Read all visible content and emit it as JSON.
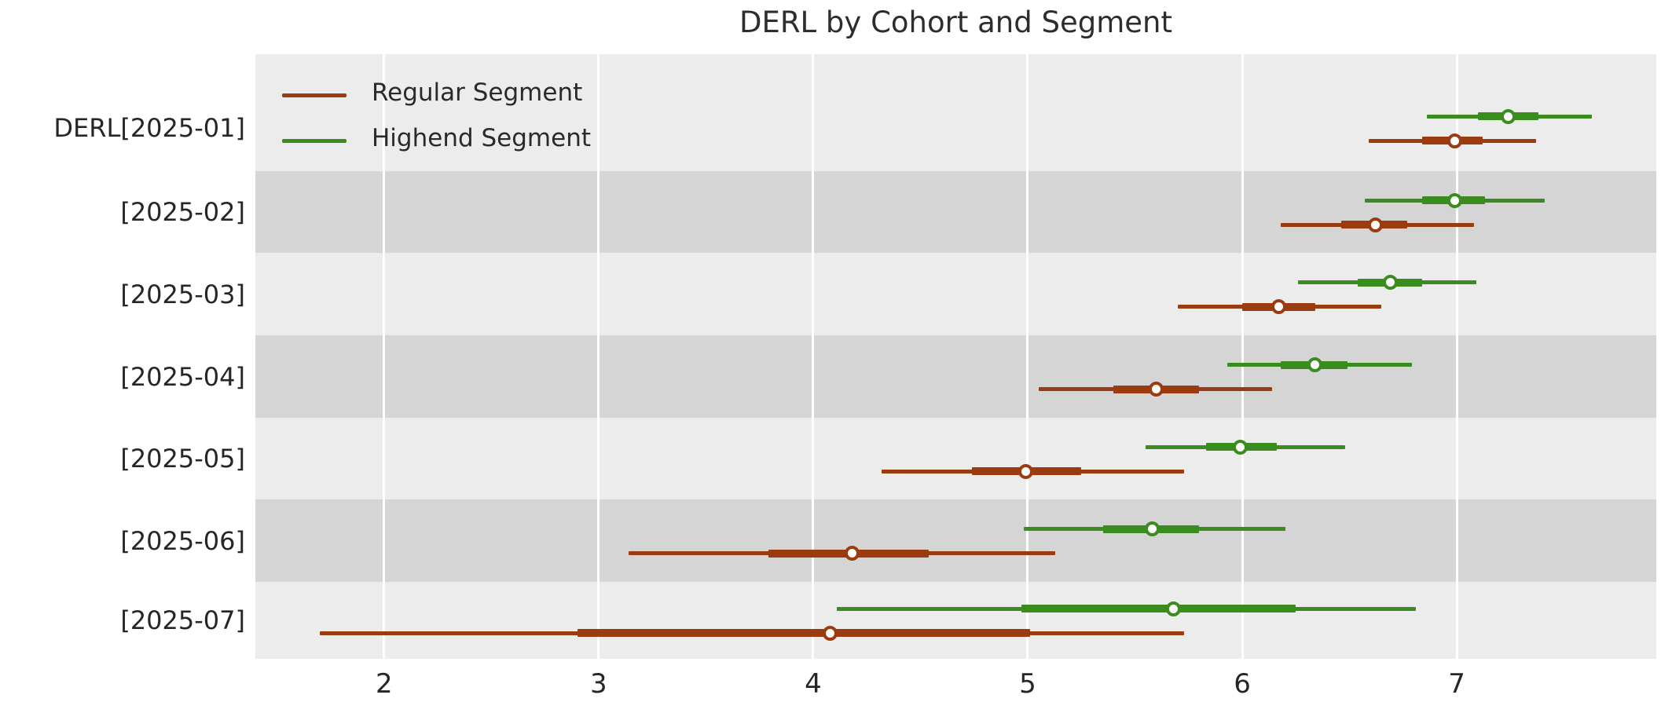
{
  "title": "DERL by Cohort and Segment",
  "legend": {
    "position": "upper left",
    "items": [
      {
        "label": "Regular Segment",
        "color": "#9A3C10"
      },
      {
        "label": "Highend Segment",
        "color": "#3A8C1E"
      }
    ]
  },
  "colors": {
    "background": "#FFFFFF",
    "band_light": "#ECECEC",
    "band_dark": "#D5D5D5",
    "gridline": "#FFFFFF",
    "text": "#262626"
  },
  "chart_data": {
    "type": "scatter",
    "subtype": "forest-plot-horizontal-intervals",
    "title": "DERL by Cohort and Segment",
    "xlabel": "",
    "ylabel": "",
    "x_ticks": [
      2,
      3,
      4,
      5,
      6,
      7
    ],
    "xlim": [
      1.4,
      7.93
    ],
    "grid": "vertical-white-on-gray-bands",
    "legend_position": "upper left",
    "categories": [
      "DERL[2025-01]",
      "[2025-02]",
      "[2025-03]",
      "[2025-04]",
      "[2025-05]",
      "[2025-06]",
      "[2025-07]"
    ],
    "interval_note": "each point: median marker, thick inner interval (q1-q3), thin outer interval (lo-hi)",
    "series": [
      {
        "name": "Regular Segment",
        "color": "#9A3C10",
        "points": [
          {
            "category": "DERL[2025-01]",
            "lo": 6.59,
            "q1": 6.84,
            "median": 6.99,
            "q3": 7.12,
            "hi": 7.37
          },
          {
            "category": "[2025-02]",
            "lo": 6.18,
            "q1": 6.46,
            "median": 6.62,
            "q3": 6.77,
            "hi": 7.08
          },
          {
            "category": "[2025-03]",
            "lo": 5.7,
            "q1": 6.0,
            "median": 6.17,
            "q3": 6.34,
            "hi": 6.65
          },
          {
            "category": "[2025-04]",
            "lo": 5.05,
            "q1": 5.4,
            "median": 5.6,
            "q3": 5.8,
            "hi": 6.14
          },
          {
            "category": "[2025-05]",
            "lo": 4.32,
            "q1": 4.74,
            "median": 4.99,
            "q3": 5.25,
            "hi": 5.73
          },
          {
            "category": "[2025-06]",
            "lo": 3.14,
            "q1": 3.79,
            "median": 4.18,
            "q3": 4.54,
            "hi": 5.13
          },
          {
            "category": "[2025-07]",
            "lo": 1.7,
            "q1": 2.9,
            "median": 4.08,
            "q3": 5.01,
            "hi": 5.73
          }
        ]
      },
      {
        "name": "Highend Segment",
        "color": "#3A8C1E",
        "points": [
          {
            "category": "DERL[2025-01]",
            "lo": 6.86,
            "q1": 7.1,
            "median": 7.24,
            "q3": 7.38,
            "hi": 7.63
          },
          {
            "category": "[2025-02]",
            "lo": 6.57,
            "q1": 6.84,
            "median": 6.99,
            "q3": 7.13,
            "hi": 7.41
          },
          {
            "category": "[2025-03]",
            "lo": 6.26,
            "q1": 6.54,
            "median": 6.69,
            "q3": 6.84,
            "hi": 7.09
          },
          {
            "category": "[2025-04]",
            "lo": 5.93,
            "q1": 6.18,
            "median": 6.34,
            "q3": 6.49,
            "hi": 6.79
          },
          {
            "category": "[2025-05]",
            "lo": 5.55,
            "q1": 5.83,
            "median": 5.99,
            "q3": 6.16,
            "hi": 6.48
          },
          {
            "category": "[2025-06]",
            "lo": 4.98,
            "q1": 5.35,
            "median": 5.58,
            "q3": 5.8,
            "hi": 6.2
          },
          {
            "category": "[2025-07]",
            "lo": 4.11,
            "q1": 4.97,
            "median": 5.68,
            "q3": 6.25,
            "hi": 6.81
          }
        ]
      }
    ]
  }
}
